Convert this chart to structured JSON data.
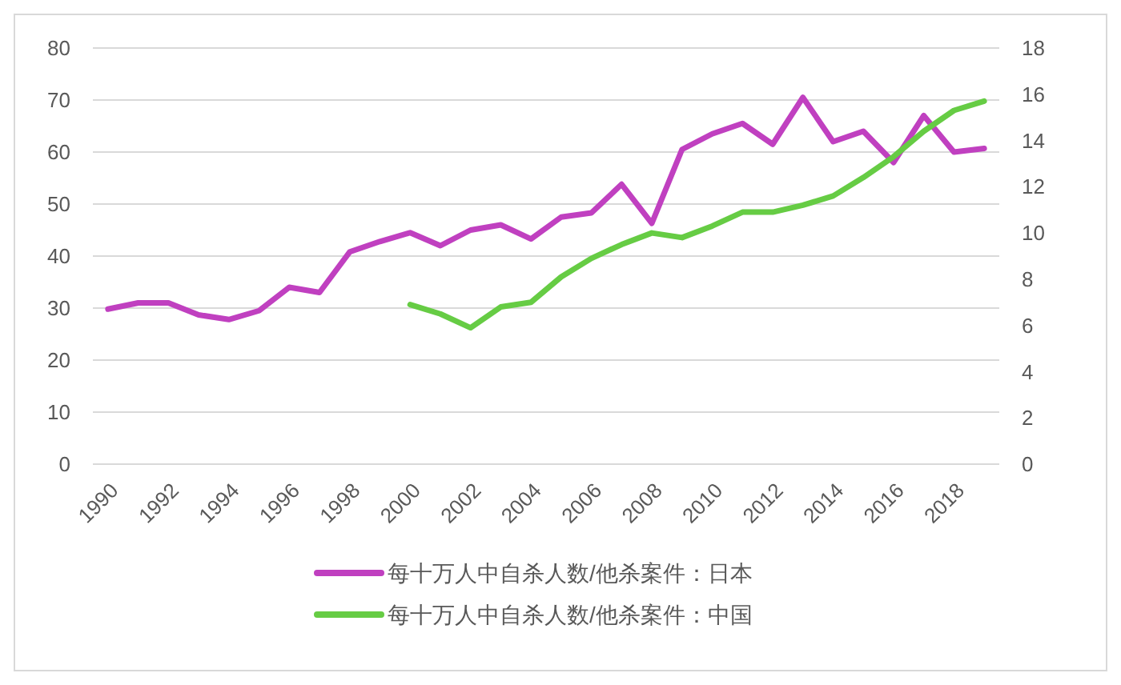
{
  "chart_data": {
    "type": "line",
    "x": [
      1990,
      1991,
      1992,
      1993,
      1994,
      1995,
      1996,
      1997,
      1998,
      1999,
      2000,
      2001,
      2002,
      2003,
      2004,
      2005,
      2006,
      2007,
      2008,
      2009,
      2010,
      2011,
      2012,
      2013,
      2014,
      2015,
      2016,
      2017,
      2018,
      2019
    ],
    "series": [
      {
        "name": "每十万人中自杀人数/他杀案件：日本",
        "color": "#c040c0",
        "values": [
          29.8,
          31,
          31,
          28.7,
          27.8,
          29.5,
          34,
          33,
          40.8,
          42.8,
          44.5,
          42,
          45,
          46,
          43.3,
          47.5,
          48.3,
          53.8,
          46.3,
          60.5,
          63.5,
          65.5,
          61.5,
          70.5,
          62,
          64,
          58,
          67,
          60,
          60.7
        ]
      },
      {
        "name": "每十万人中自杀人数/他杀案件：中国",
        "color": "#66cc44",
        "axis": "y2",
        "values": [
          null,
          null,
          null,
          null,
          null,
          null,
          null,
          null,
          null,
          null,
          6.9,
          6.5,
          5.9,
          6.8,
          7.0,
          8.1,
          8.9,
          9.5,
          10.0,
          9.8,
          10.3,
          10.9,
          10.9,
          11.2,
          11.6,
          12.4,
          13.3,
          14.4,
          15.3,
          15.7
        ]
      }
    ],
    "xlim": [
      1989.5,
      2019.5
    ],
    "xticks": [
      1990,
      1992,
      1994,
      1996,
      1998,
      2000,
      2002,
      2004,
      2006,
      2008,
      2010,
      2012,
      2014,
      2016,
      2018
    ],
    "ylim": [
      0,
      80
    ],
    "yticks": [
      0,
      10,
      20,
      30,
      40,
      50,
      60,
      70,
      80
    ],
    "y2lim": [
      0,
      18
    ],
    "y2ticks": [
      0,
      2,
      4,
      6,
      8,
      10,
      12,
      14,
      16,
      18
    ],
    "grid": "y",
    "legend": "bottom",
    "marker": "none",
    "line_style": "solid"
  }
}
